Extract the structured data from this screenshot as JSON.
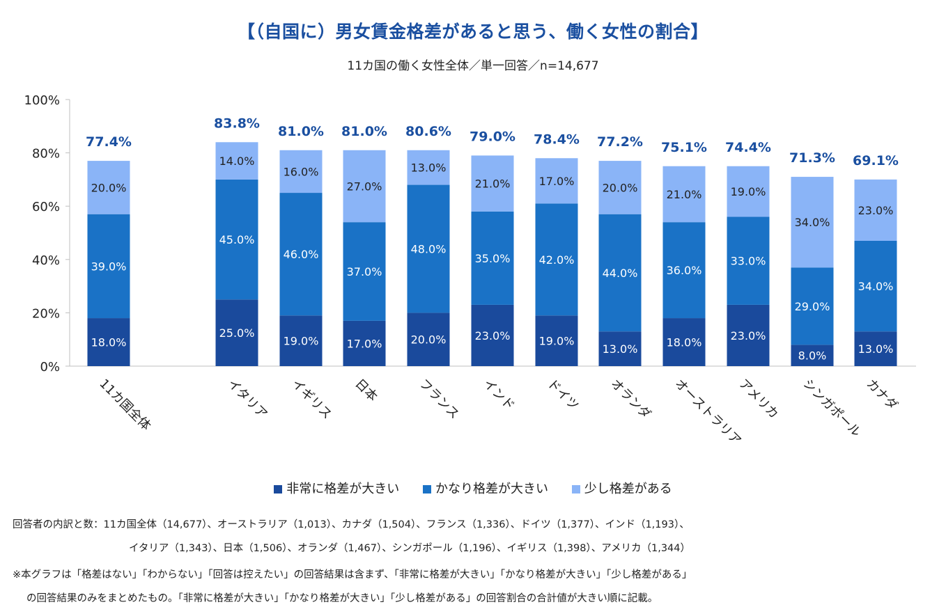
{
  "title": "【（自国に）男女賃金格差があると思う、働く女性の割合】",
  "subtitle": "11カ国の働く女性全体／単一回答／n=14,677",
  "colors": {
    "dark": "#1a4a9c",
    "mid": "#1a72c6",
    "light": "#8ab4f7",
    "total_label": "#1a4fa0",
    "axis": "#bfbfbf"
  },
  "chart_data": {
    "type": "bar",
    "stacked": true,
    "categories": [
      "11カ国全体",
      "イタリア",
      "イギリス",
      "日本",
      "フランス",
      "インド",
      "ドイツ",
      "オランダ",
      "オーストラリア",
      "アメリカ",
      "シンガポール",
      "カナダ"
    ],
    "series": [
      {
        "name": "非常に格差が大きい",
        "values": [
          18.0,
          25.0,
          19.0,
          17.0,
          20.0,
          23.0,
          19.0,
          13.0,
          18.0,
          23.0,
          8.0,
          13.0
        ]
      },
      {
        "name": "かなり格差が大きい",
        "values": [
          39.0,
          45.0,
          46.0,
          37.0,
          48.0,
          35.0,
          42.0,
          44.0,
          36.0,
          33.0,
          29.0,
          34.0
        ]
      },
      {
        "name": "少し格差がある",
        "values": [
          20.0,
          14.0,
          16.0,
          27.0,
          13.0,
          21.0,
          17.0,
          20.0,
          21.0,
          19.0,
          34.0,
          23.0
        ]
      }
    ],
    "segment_labels": [
      [
        "18.0%",
        "25.0%",
        "19.0%",
        "17.0%",
        "20.0%",
        "23.0%",
        "19.0%",
        "13.0%",
        "18.0%",
        "23.0%",
        "8.0%",
        "13.0%"
      ],
      [
        "39.0%",
        "45.0%",
        "46.0%",
        "37.0%",
        "48.0%",
        "35.0%",
        "42.0%",
        "44.0%",
        "36.0%",
        "33.0%",
        "29.0%",
        "34.0%"
      ],
      [
        "20.0%",
        "14.0%",
        "16.0%",
        "27.0%",
        "13.0%",
        "21.0%",
        "17.0%",
        "20.0%",
        "21.0%",
        "19.0%",
        "34.0%",
        "23.0%"
      ]
    ],
    "totals": [
      77.4,
      83.8,
      81.0,
      81.0,
      80.6,
      79.0,
      78.4,
      77.2,
      75.1,
      74.4,
      71.3,
      69.1
    ],
    "total_labels": [
      "77.4%",
      "83.8%",
      "81.0%",
      "81.0%",
      "80.6%",
      "79.0%",
      "78.4%",
      "77.2%",
      "75.1%",
      "74.4%",
      "71.3%",
      "69.1%"
    ],
    "yticks": [
      0,
      20,
      40,
      60,
      80,
      100
    ],
    "ytick_labels": [
      "0%",
      "20%",
      "40%",
      "60%",
      "80%",
      "100%"
    ],
    "ylim": [
      0,
      100
    ],
    "legend": [
      "非常に格差が大きい",
      "かなり格差が大きい",
      "少し格差がある"
    ]
  },
  "notes": [
    "回答者の内訳と数：11カ国全体（14,677）、オーストラリア（1,013）、カナダ（1,504）、フランス（1,336）、ドイツ（1,377）、インド（1,193）、",
    "イタリア（1,343）、日本（1,506）、オランダ（1,467）、シンガポール（1,196）、イギリス（1,398）、アメリカ（1,344）",
    "※本グラフは「格差はない」「わからない」「回答は控えたい」の回答結果は含まず、「非常に格差が大きい」「かなり格差が大きい」「少し格差がある」",
    "の回答結果のみをまとめたもの。「非常に格差が大きい」「かなり格差が大きい」「少し格差がある」の回答割合の合計値が大きい順に記載。"
  ]
}
